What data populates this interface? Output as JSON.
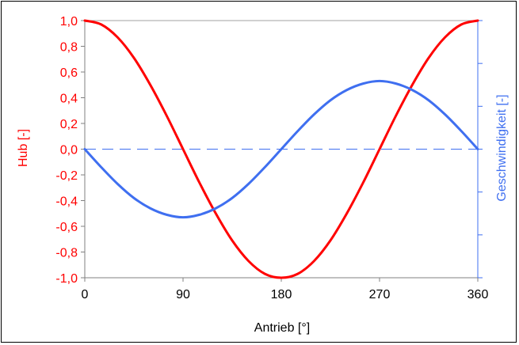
{
  "chart_data": {
    "type": "line",
    "xlabel": "Antrieb [°]",
    "ylabel_left": "Hub [-]",
    "ylabel_right": "Geschwindigkeit [-]",
    "xlim": [
      0,
      360
    ],
    "ylim_left": [
      -1.0,
      1.0
    ],
    "ylim_right": [
      -1.0,
      1.0
    ],
    "x_ticks": [
      "0",
      "90",
      "180",
      "270",
      "360"
    ],
    "y_ticks_left": [
      "1,0",
      "0,8",
      "0,6",
      "0,4",
      "0,2",
      "0,0",
      "-0,2",
      "-0,4",
      "-0,6",
      "-0,8",
      "-1,0"
    ],
    "x": [
      0,
      15,
      30,
      45,
      60,
      75,
      90,
      105,
      120,
      135,
      150,
      165,
      180,
      195,
      210,
      225,
      240,
      255,
      270,
      285,
      300,
      315,
      330,
      345,
      360
    ],
    "series": [
      {
        "name": "Hub",
        "axis": "left",
        "color": "#ff0000",
        "values": [
          1.0,
          0.97,
          0.87,
          0.71,
          0.5,
          0.26,
          0.0,
          -0.26,
          -0.5,
          -0.71,
          -0.87,
          -0.97,
          -1.0,
          -0.97,
          -0.87,
          -0.71,
          -0.5,
          -0.26,
          0.0,
          0.26,
          0.5,
          0.71,
          0.87,
          0.97,
          1.0
        ]
      },
      {
        "name": "Geschwindigkeit",
        "axis": "right",
        "color": "#3f6ff0",
        "values": [
          0.0,
          -0.14,
          -0.27,
          -0.38,
          -0.46,
          -0.51,
          -0.53,
          -0.51,
          -0.46,
          -0.38,
          -0.27,
          -0.14,
          0.0,
          0.14,
          0.27,
          0.38,
          0.46,
          0.51,
          0.53,
          0.51,
          0.46,
          0.38,
          0.27,
          0.14,
          0.0
        ]
      }
    ],
    "reference_lines": [
      {
        "axis": "left",
        "y": 1.0,
        "color": "#a0a0a0",
        "style": "solid"
      },
      {
        "axis": "left",
        "y": 0.0,
        "color": "#3f6ff0",
        "style": "dashed"
      }
    ],
    "grid": false,
    "legend": "none"
  }
}
